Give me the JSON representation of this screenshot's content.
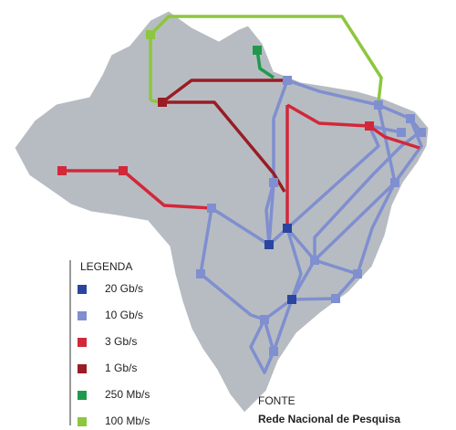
{
  "legend": {
    "title": "LEGENDA",
    "items": [
      {
        "label": "20 Gb/s",
        "color": "#2a45a0"
      },
      {
        "label": "10 Gb/s",
        "color": "#7f8fcf"
      },
      {
        "label": "3 Gb/s",
        "color": "#d2283a"
      },
      {
        "label": "1 Gb/s",
        "color": "#9a1c24"
      },
      {
        "label": "250 Mb/s",
        "color": "#1f9a4c"
      },
      {
        "label": "100 Mb/s",
        "color": "#8dc63f"
      }
    ]
  },
  "source": {
    "label": "FONTE",
    "name": "Rede Nacional de Pesquisa"
  }
}
